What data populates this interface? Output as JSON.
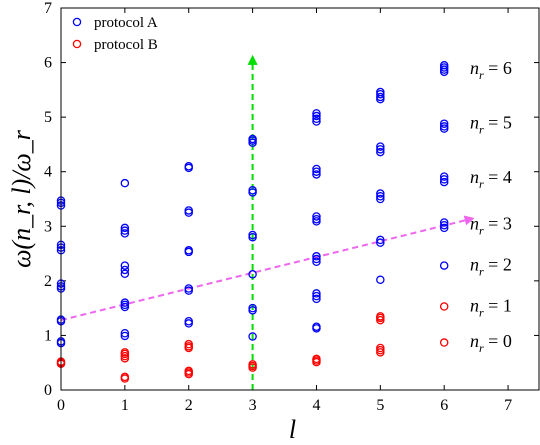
{
  "chart_data": {
    "type": "scatter",
    "xlabel": "l",
    "ylabel": "ω(n_r, l)/ω_r",
    "xlim": [
      0,
      7.5
    ],
    "ylim": [
      0,
      7
    ],
    "xticks": [
      0,
      1,
      2,
      3,
      4,
      5,
      6,
      7
    ],
    "yticks": [
      0,
      1,
      2,
      3,
      4,
      5,
      6,
      7
    ],
    "grid": false,
    "legend_placement": "top-left",
    "series": [
      {
        "name": "protocol A",
        "color": "#0000ff",
        "marker": "open-circle",
        "points": [
          [
            0,
            0.86
          ],
          [
            0,
            0.89
          ],
          [
            0,
            1.26
          ],
          [
            0,
            1.29
          ],
          [
            0,
            1.86
          ],
          [
            0,
            1.9
          ],
          [
            0,
            1.95
          ],
          [
            0,
            2.56
          ],
          [
            0,
            2.61
          ],
          [
            0,
            2.66
          ],
          [
            0,
            3.38
          ],
          [
            0,
            3.43
          ],
          [
            0,
            3.47
          ],
          [
            1,
            0.99
          ],
          [
            1,
            1.04
          ],
          [
            1,
            1.52
          ],
          [
            1,
            1.56
          ],
          [
            1,
            1.6
          ],
          [
            1,
            2.13
          ],
          [
            1,
            2.2
          ],
          [
            1,
            2.28
          ],
          [
            1,
            2.87
          ],
          [
            1,
            2.92
          ],
          [
            1,
            2.97
          ],
          [
            1,
            3.79
          ],
          [
            2,
            1.22
          ],
          [
            2,
            1.26
          ],
          [
            2,
            1.82
          ],
          [
            2,
            1.86
          ],
          [
            2,
            2.53
          ],
          [
            2,
            2.56
          ],
          [
            2,
            3.25
          ],
          [
            2,
            3.29
          ],
          [
            2,
            4.07
          ],
          [
            2,
            4.1
          ],
          [
            3,
            0.98
          ],
          [
            3,
            1.46
          ],
          [
            3,
            1.5
          ],
          [
            3,
            2.12
          ],
          [
            3,
            2.8
          ],
          [
            3,
            2.84
          ],
          [
            3,
            3.62
          ],
          [
            3,
            3.66
          ],
          [
            3,
            4.53
          ],
          [
            3,
            4.57
          ],
          [
            3,
            4.6
          ],
          [
            4,
            1.13
          ],
          [
            4,
            1.16
          ],
          [
            4,
            1.67
          ],
          [
            4,
            1.72
          ],
          [
            4,
            1.77
          ],
          [
            4,
            2.35
          ],
          [
            4,
            2.4
          ],
          [
            4,
            2.45
          ],
          [
            4,
            3.09
          ],
          [
            4,
            3.13
          ],
          [
            4,
            3.18
          ],
          [
            4,
            3.95
          ],
          [
            4,
            4.0
          ],
          [
            4,
            4.05
          ],
          [
            4,
            4.92
          ],
          [
            4,
            4.97
          ],
          [
            4,
            5.02
          ],
          [
            4,
            5.07
          ],
          [
            5,
            2.02
          ],
          [
            5,
            2.7
          ],
          [
            5,
            2.75
          ],
          [
            5,
            3.5
          ],
          [
            5,
            3.55
          ],
          [
            5,
            3.6
          ],
          [
            5,
            4.36
          ],
          [
            5,
            4.41
          ],
          [
            5,
            4.46
          ],
          [
            5,
            5.33
          ],
          [
            5,
            5.37
          ],
          [
            5,
            5.42
          ],
          [
            5,
            5.46
          ],
          [
            6,
            2.28
          ],
          [
            6,
            2.97
          ],
          [
            6,
            3.02
          ],
          [
            6,
            3.07
          ],
          [
            6,
            3.81
          ],
          [
            6,
            3.86
          ],
          [
            6,
            3.91
          ],
          [
            6,
            4.79
          ],
          [
            6,
            4.83
          ],
          [
            6,
            4.88
          ],
          [
            6,
            5.83
          ],
          [
            6,
            5.87
          ],
          [
            6,
            5.91
          ],
          [
            6,
            5.95
          ]
        ]
      },
      {
        "name": "protocol B",
        "color": "#ff0000",
        "marker": "open-circle",
        "points": [
          [
            0,
            0.48
          ],
          [
            0,
            0.5
          ],
          [
            0,
            0.52
          ],
          [
            1,
            0.21
          ],
          [
            1,
            0.24
          ],
          [
            1,
            0.58
          ],
          [
            1,
            0.62
          ],
          [
            1,
            0.66
          ],
          [
            1,
            0.69
          ],
          [
            2,
            0.29
          ],
          [
            2,
            0.32
          ],
          [
            2,
            0.35
          ],
          [
            2,
            0.77
          ],
          [
            2,
            0.8
          ],
          [
            2,
            0.84
          ],
          [
            3,
            0.41
          ],
          [
            3,
            0.44
          ],
          [
            3,
            0.47
          ],
          [
            4,
            0.51
          ],
          [
            4,
            0.54
          ],
          [
            4,
            0.57
          ],
          [
            5,
            0.69
          ],
          [
            5,
            0.73
          ],
          [
            5,
            0.77
          ],
          [
            5,
            1.28
          ],
          [
            5,
            1.32
          ],
          [
            5,
            1.35
          ],
          [
            6,
            0.87
          ],
          [
            6,
            1.53
          ]
        ]
      }
    ],
    "arrows": [
      {
        "color": "#00dd00",
        "from": [
          3,
          0
        ],
        "to": [
          3,
          6.05
        ]
      },
      {
        "color": "#ee66ee",
        "from": [
          0,
          1.28
        ],
        "to": [
          6.4,
          3.13
        ]
      }
    ],
    "nr_labels": [
      {
        "prefix": "n",
        "sub": "r",
        "text": " = 6",
        "y": 5.9
      },
      {
        "prefix": "n",
        "sub": "r",
        "text": " = 5",
        "y": 4.9
      },
      {
        "prefix": "n",
        "sub": "r",
        "text": " = 4",
        "y": 3.9
      },
      {
        "prefix": "n",
        "sub": "r",
        "text": " = 3",
        "y": 3.05
      },
      {
        "prefix": "n",
        "sub": "r",
        "text": " = 2",
        "y": 2.3
      },
      {
        "prefix": "n",
        "sub": "r",
        "text": " = 1",
        "y": 1.55
      },
      {
        "prefix": "n",
        "sub": "r",
        "text": " = 0",
        "y": 0.9
      }
    ]
  }
}
